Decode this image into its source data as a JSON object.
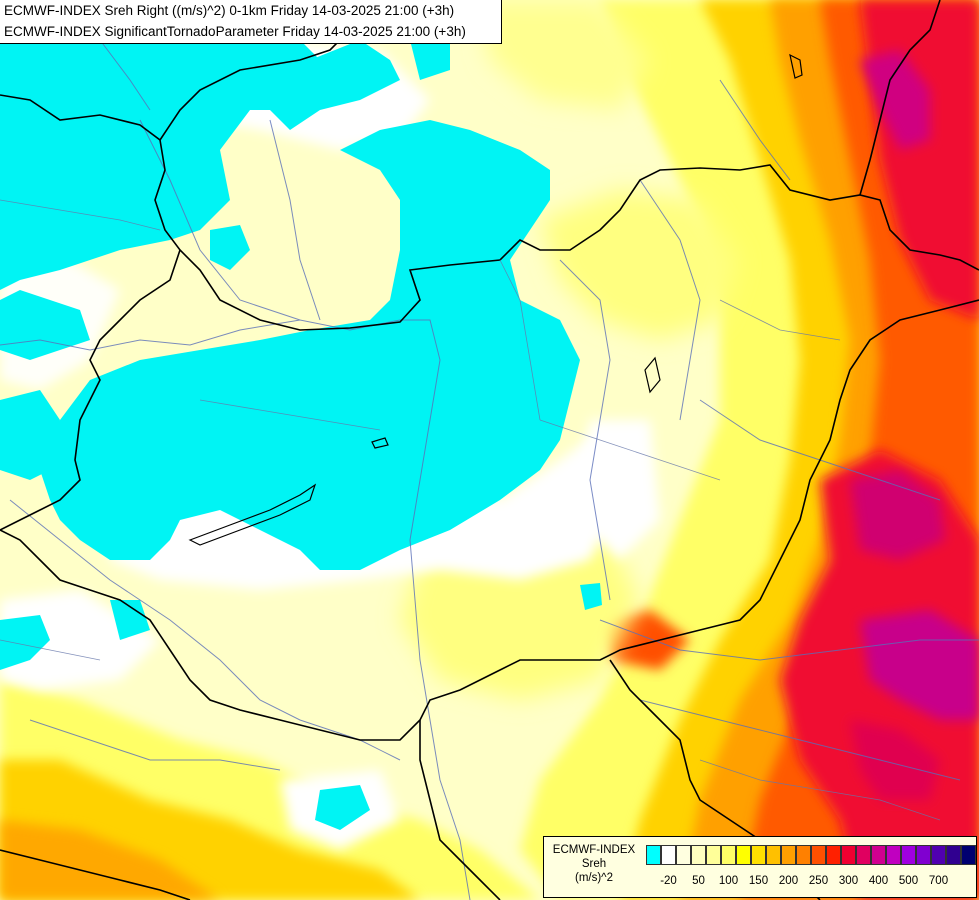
{
  "header": {
    "line1": "ECMWF-INDEX Sreh Right ((m/s)^2) 0-1km Friday 14-03-2025 21:00 (+3h)",
    "line2": "ECMWF-INDEX SignificantTornadoParameter Friday 14-03-2025 21:00 (+3h)"
  },
  "legend": {
    "line1": "ECMWF-INDEX",
    "line2": "Sreh",
    "line3": "(m/s)^2",
    "colors": [
      "#00ffff",
      "#ffffff",
      "#ffffe0",
      "#ffffc0",
      "#ffff99",
      "#ffff66",
      "#ffff00",
      "#ffe000",
      "#ffc000",
      "#ffa000",
      "#ff8000",
      "#ff5000",
      "#ff2000",
      "#f00030",
      "#e00060",
      "#d00090",
      "#c000c0",
      "#a000e0",
      "#8000d0",
      "#5000b0",
      "#300090",
      "#000070"
    ],
    "ticks": [
      {
        "label": "-20",
        "pos": 1
      },
      {
        "label": "50",
        "pos": 3
      },
      {
        "label": "100",
        "pos": 5
      },
      {
        "label": "150",
        "pos": 7
      },
      {
        "label": "200",
        "pos": 9
      },
      {
        "label": "250",
        "pos": 11
      },
      {
        "label": "300",
        "pos": 13
      },
      {
        "label": "400",
        "pos": 15
      },
      {
        "label": "500",
        "pos": 17
      },
      {
        "label": "700",
        "pos": 19
      }
    ]
  }
}
